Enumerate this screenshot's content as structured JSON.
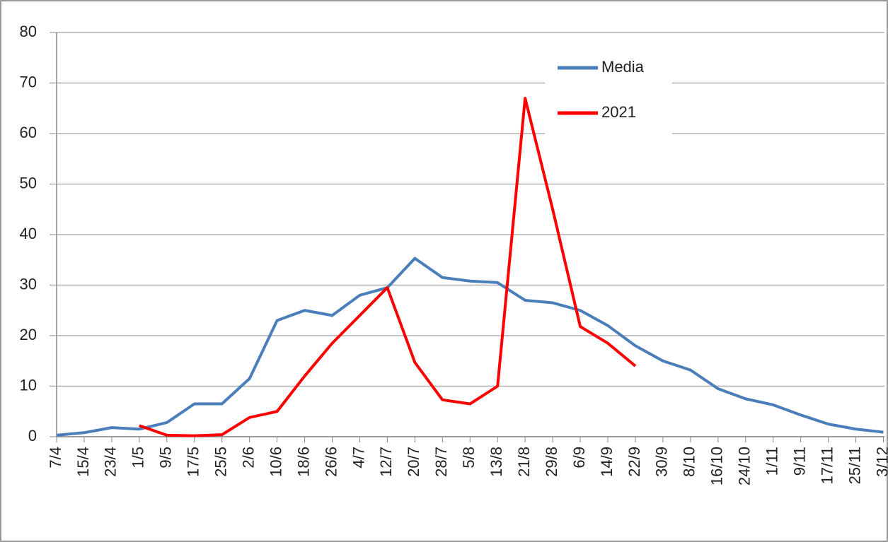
{
  "chart_data": {
    "type": "line",
    "categories": [
      "7/4",
      "15/4",
      "23/4",
      "1/5",
      "9/5",
      "17/5",
      "25/5",
      "2/6",
      "10/6",
      "18/6",
      "26/6",
      "4/7",
      "12/7",
      "20/7",
      "28/7",
      "5/8",
      "13/8",
      "21/8",
      "29/8",
      "6/9",
      "14/9",
      "22/9",
      "30/9",
      "8/10",
      "16/10",
      "24/10",
      "1/11",
      "9/11",
      "17/11",
      "25/11",
      "3/12"
    ],
    "series": [
      {
        "name": "Media",
        "color": "#4a7ebb",
        "values": [
          0.3,
          0.8,
          1.8,
          1.5,
          2.8,
          6.5,
          6.5,
          11.5,
          23,
          25,
          24,
          28,
          29.5,
          35.3,
          31.5,
          30.8,
          30.5,
          27,
          26.5,
          25,
          22,
          18,
          15,
          13.2,
          9.5,
          7.5,
          6.3,
          4.3,
          2.5,
          1.5,
          0.9
        ]
      },
      {
        "name": "2021",
        "color": "#ff0000",
        "values": [
          null,
          null,
          null,
          2.2,
          0.3,
          0.2,
          0.4,
          3.8,
          5,
          12,
          18.5,
          24,
          29.5,
          14.7,
          7.3,
          6.5,
          10,
          67,
          45,
          21.8,
          18.5,
          14,
          null,
          null,
          null,
          null,
          null,
          null,
          null,
          null,
          null
        ]
      }
    ],
    "ylim": [
      0,
      80
    ],
    "yticks": [
      0,
      10,
      20,
      30,
      40,
      50,
      60,
      70,
      80
    ],
    "grid": true,
    "legend": "top-right"
  }
}
